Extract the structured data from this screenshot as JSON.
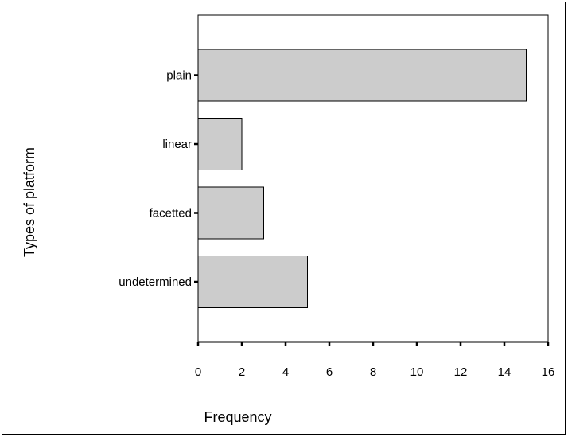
{
  "chart_data": {
    "type": "bar",
    "orientation": "horizontal",
    "categories": [
      "plain",
      "linear",
      "facetted",
      "undetermined"
    ],
    "values": [
      15,
      2,
      3,
      5
    ],
    "title": "",
    "xlabel": "Frequency",
    "ylabel": "Types of platform",
    "xlim": [
      0,
      16
    ],
    "xticks": [
      "0",
      "2",
      "4",
      "6",
      "8",
      "10",
      "12",
      "14",
      "16"
    ],
    "grid": false,
    "legend": "none",
    "bar_color": "#cccccc",
    "bar_edge_color": "#000000"
  }
}
